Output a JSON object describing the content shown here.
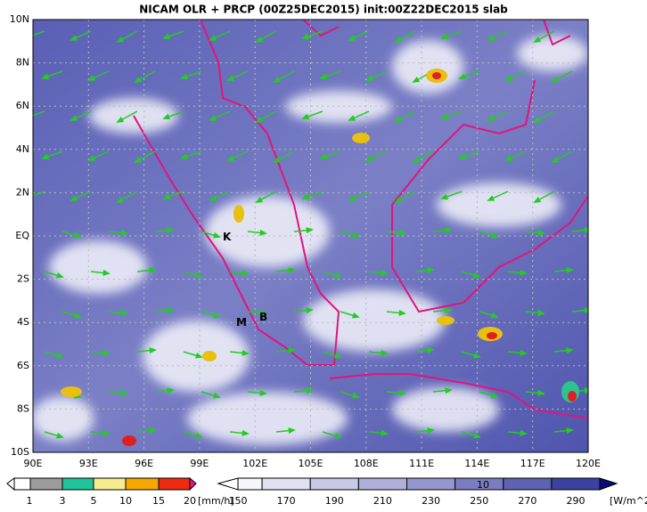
{
  "header": {
    "title": "NICAM OLR + PRCP (00Z25DEC2015) init:00Z22DEC2015 slab"
  },
  "map": {
    "x_labels": [
      "90E",
      "93E",
      "96E",
      "99E",
      "102E",
      "105E",
      "108E",
      "111E",
      "114E",
      "117E",
      "120E"
    ],
    "y_labels": [
      "10N",
      "8N",
      "6N",
      "4N",
      "2N",
      "EQ",
      "2S",
      "4S",
      "6S",
      "8S",
      "10S"
    ],
    "annotations": [
      "K",
      "M",
      "B"
    ],
    "vector_reference": "10"
  },
  "precip_colorbar": {
    "labels": [
      1,
      3,
      5,
      10,
      15,
      20
    ],
    "unit": "[mm/h]"
  },
  "olr_colorbar": {
    "labels": [
      150,
      170,
      190,
      210,
      230,
      250,
      270,
      290
    ],
    "unit": "[W/m^2]"
  }
}
